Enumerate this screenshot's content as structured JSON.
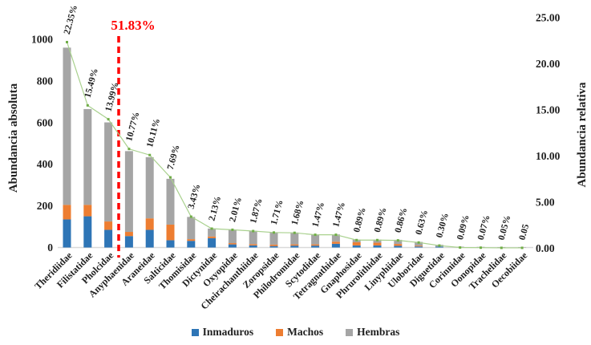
{
  "chart_data": {
    "type": "bar",
    "subtype": "pareto-stacked-bars-with-relative-abundance-line",
    "title": "",
    "categories": [
      "Theridiidae",
      "Filistatidae",
      "Pholcidae",
      "Anyphaenidae",
      "Araneidae",
      "Salticidae",
      "Thomisidae",
      "Dictynidae",
      "Oxyopidae",
      "Cheirachanthiidae",
      "Zoropsidae",
      "Philodromidae",
      "Scytodidae",
      "Tetragnathidae",
      "Gnaphosidae",
      "Phrurolithidae",
      "Linyphiidae",
      "Uloboridae",
      "Diguetidae",
      "Corinnidae",
      "Oonopidae",
      "Trachelidae",
      "Oecobiidae"
    ],
    "series": [
      {
        "name": "Inmaduros",
        "color": "#2E75B6",
        "values": [
          135,
          150,
          85,
          55,
          85,
          35,
          32,
          45,
          15,
          10,
          7,
          9,
          9,
          18,
          10,
          10,
          8,
          5,
          4,
          0,
          0,
          0,
          0
        ]
      },
      {
        "name": "Machos",
        "color": "#ED7D31",
        "values": [
          70,
          55,
          40,
          20,
          55,
          75,
          8,
          8,
          6,
          6,
          7,
          6,
          6,
          10,
          15,
          13,
          9,
          4,
          0,
          0,
          0,
          0,
          0
        ]
      },
      {
        "name": "Hembras",
        "color": "#A5A5A5",
        "values": [
          755,
          460,
          476,
          388,
          294,
          220,
          107,
          38,
          65,
          64,
          59,
          57,
          48,
          35,
          13,
          15,
          20,
          18,
          9,
          4,
          3,
          2,
          2
        ]
      }
    ],
    "bar_totals": [
      960,
      665,
      601,
      463,
      434,
      330,
      147,
      91,
      86,
      80,
      73,
      72,
      63,
      63,
      38,
      38,
      37,
      27,
      13,
      4,
      3,
      2,
      2
    ],
    "line_series": {
      "name": "Abundancia relativa",
      "color": "#A9D18E",
      "marker_color": "#70AD47",
      "values": [
        22.35,
        15.49,
        13.99,
        10.77,
        10.11,
        7.69,
        3.43,
        2.13,
        2.01,
        1.87,
        1.71,
        1.68,
        1.47,
        1.47,
        0.89,
        0.89,
        0.86,
        0.63,
        0.3,
        0.09,
        0.07,
        0.05,
        0.05
      ]
    },
    "point_labels": [
      "22.35%",
      "15.49%",
      "13.99%",
      "10.77%",
      "10.11%",
      "7.69%",
      "3.43%",
      "2.13%",
      "2.01%",
      "1.87%",
      "1.71%",
      "1.68%",
      "1.47%",
      "1.47%",
      "0.89%",
      "0.89%",
      "0.86%",
      "0.63%",
      "0.30%",
      "0.09%",
      "0.07%",
      "0.05%",
      "0.05"
    ],
    "cutoff_line": {
      "label": "51.83%",
      "color": "#FF0000",
      "after_index": 2,
      "between_categories": [
        "Pholcidae",
        "Anyphaenidae"
      ]
    },
    "y_axis_left": {
      "label": "Abundancia absoluta",
      "ticks": [
        0,
        200,
        400,
        600,
        800,
        1000
      ],
      "max": 1000
    },
    "y_axis_right": {
      "label": "Abundancia relativa",
      "ticks": [
        "0.00",
        "5.00",
        "10.00",
        "15.00",
        "20.00",
        "25.00"
      ],
      "max": 25
    },
    "legend": {
      "position": "bottom",
      "entries": [
        "Inmaduros",
        "Machos",
        "Hembras"
      ]
    },
    "grid": false,
    "baseline_color": "#D9D9D9"
  }
}
